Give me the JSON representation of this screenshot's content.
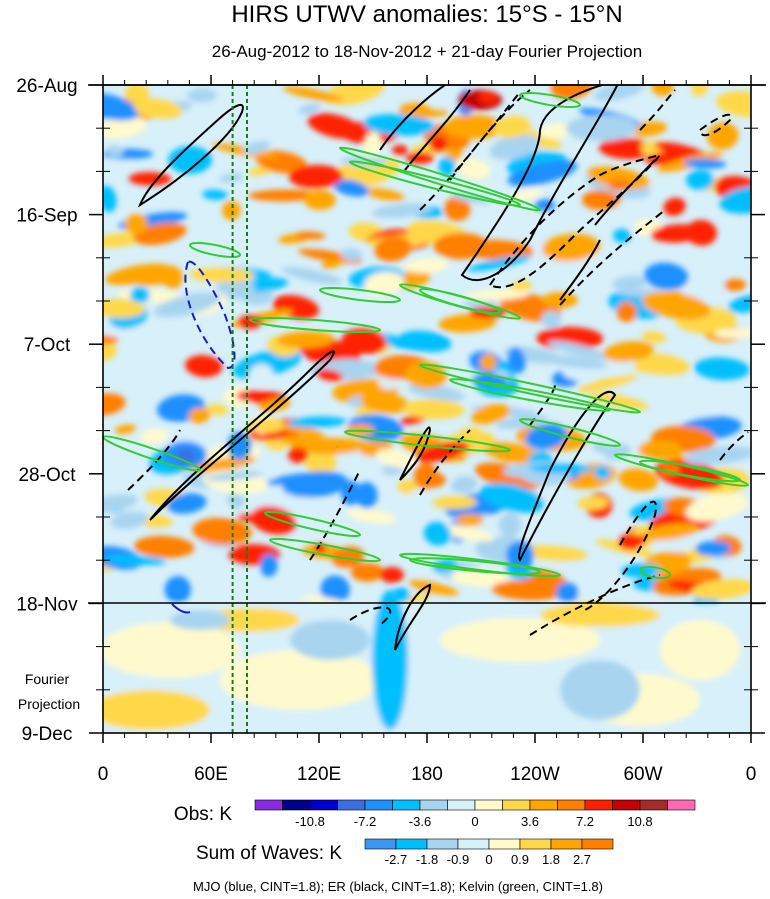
{
  "chart_data": {
    "type": "heatmap",
    "title": "HIRS UTWV anomalies: 15°S - 15°N",
    "subtitle": "26-Aug-2012 to 18-Nov-2012 + 21-day Fourier Projection",
    "x_ticks": [
      "0",
      "60E",
      "120E",
      "180",
      "120W",
      "60W",
      "0"
    ],
    "x_range_degrees_east": [
      0,
      360
    ],
    "y_ticks": [
      "26-Aug",
      "16-Sep",
      "7-Oct",
      "28-Oct",
      "18-Nov",
      "9-Dec"
    ],
    "y_range_days": [
      0,
      105
    ],
    "observation_end": "18-Nov",
    "projection_label": [
      "Fourier",
      "Projection"
    ],
    "reference_meridians_degrees_east": [
      72,
      80
    ],
    "obs_colorbar": {
      "label": "Obs: K",
      "tick_labels": [
        "-10.8",
        "-7.2",
        "-3.6",
        "0",
        "3.6",
        "7.2",
        "10.8"
      ],
      "colors": [
        "#8a2be2",
        "#00008b",
        "#0000cd",
        "#3c6ee0",
        "#1e90ff",
        "#00bfff",
        "#a8d4f0",
        "#d8f0fa",
        "#fffacd",
        "#ffd84a",
        "#ffa500",
        "#ff7f00",
        "#ff2000",
        "#c40000",
        "#a52a2a",
        "#ff69b4"
      ]
    },
    "waves_colorbar": {
      "label": "Sum of Waves: K",
      "tick_labels": [
        "-2.7",
        "-1.8",
        "-0.9",
        "0",
        "0.9",
        "1.8",
        "2.7"
      ],
      "colors": [
        "#3c96f0",
        "#00bfff",
        "#a8d4f0",
        "#d8f0fa",
        "#fffacd",
        "#ffd84a",
        "#ffa500",
        "#ff7f00"
      ]
    },
    "footer": "MJO (blue, CINT=1.8); ER (black, CINT=1.8); Kelvin (green, CINT=1.8)",
    "contour_colors": {
      "MJO": "#1a1acd",
      "ER": "#000000",
      "Kelvin": "#32cd32"
    }
  }
}
